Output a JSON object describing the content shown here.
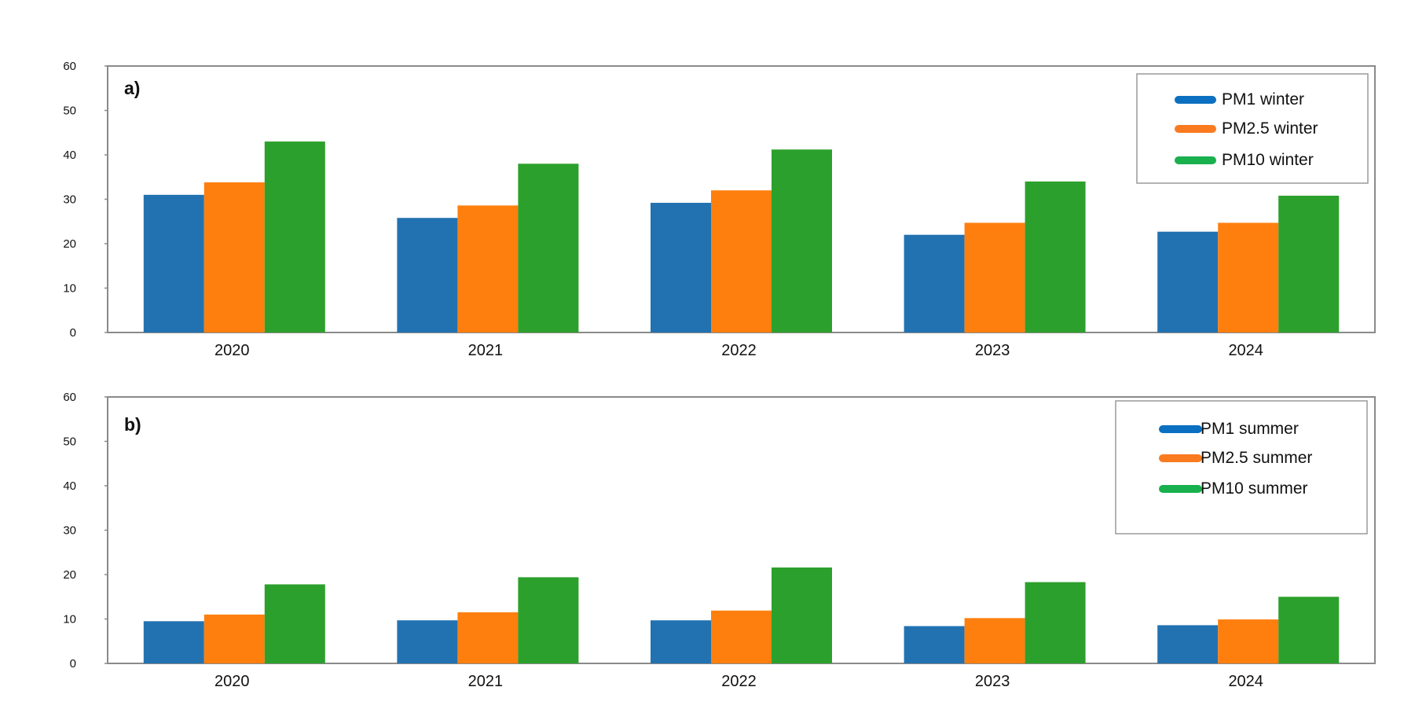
{
  "colors": {
    "pm1": "#2272b1",
    "pm25": "#fe7f0e",
    "pm10": "#2ca02c",
    "legend_pm1": "#0b70c1",
    "legend_pm25": "#f97a1f",
    "legend_pm10": "#19b04e",
    "frame": "#8a8a8a",
    "legend_border": "#9a9a9a"
  },
  "chart_data": [
    {
      "type": "bar",
      "panel_label": "a)",
      "categories": [
        "2020",
        "2021",
        "2022",
        "2023",
        "2024"
      ],
      "ylim": [
        0,
        60
      ],
      "yticks": [
        "0",
        "10",
        "20",
        "30",
        "40",
        "50",
        "60"
      ],
      "legend_position": "top-right",
      "grid": false,
      "series": [
        {
          "name": "PM1 winter",
          "color_key": "pm1",
          "legend_color_key": "legend_pm1",
          "values": [
            31,
            25.8,
            29.2,
            22,
            22.7
          ]
        },
        {
          "name": "PM2.5 winter",
          "color_key": "pm25",
          "legend_color_key": "legend_pm25",
          "values": [
            33.8,
            28.6,
            32,
            24.7,
            24.7
          ]
        },
        {
          "name": "PM10 winter",
          "color_key": "pm10",
          "legend_color_key": "legend_pm10",
          "values": [
            43,
            38,
            41.2,
            34,
            30.8
          ]
        }
      ]
    },
    {
      "type": "bar",
      "panel_label": "b)",
      "categories": [
        "2020",
        "2021",
        "2022",
        "2023",
        "2024"
      ],
      "ylim": [
        0,
        60
      ],
      "yticks": [
        "0",
        "10",
        "20",
        "30",
        "40",
        "50",
        "60"
      ],
      "legend_position": "top-right",
      "grid": false,
      "series": [
        {
          "name": "PM1 summer",
          "color_key": "pm1",
          "legend_color_key": "legend_pm1",
          "values": [
            9.5,
            9.7,
            9.7,
            8.4,
            8.6
          ]
        },
        {
          "name": "PM2.5 summer",
          "color_key": "pm25",
          "legend_color_key": "legend_pm25",
          "values": [
            11,
            11.5,
            11.9,
            10.2,
            9.9
          ]
        },
        {
          "name": "PM10 summer",
          "color_key": "pm10",
          "legend_color_key": "legend_pm10",
          "values": [
            17.8,
            19.4,
            21.6,
            18.3,
            15
          ]
        }
      ]
    }
  ]
}
